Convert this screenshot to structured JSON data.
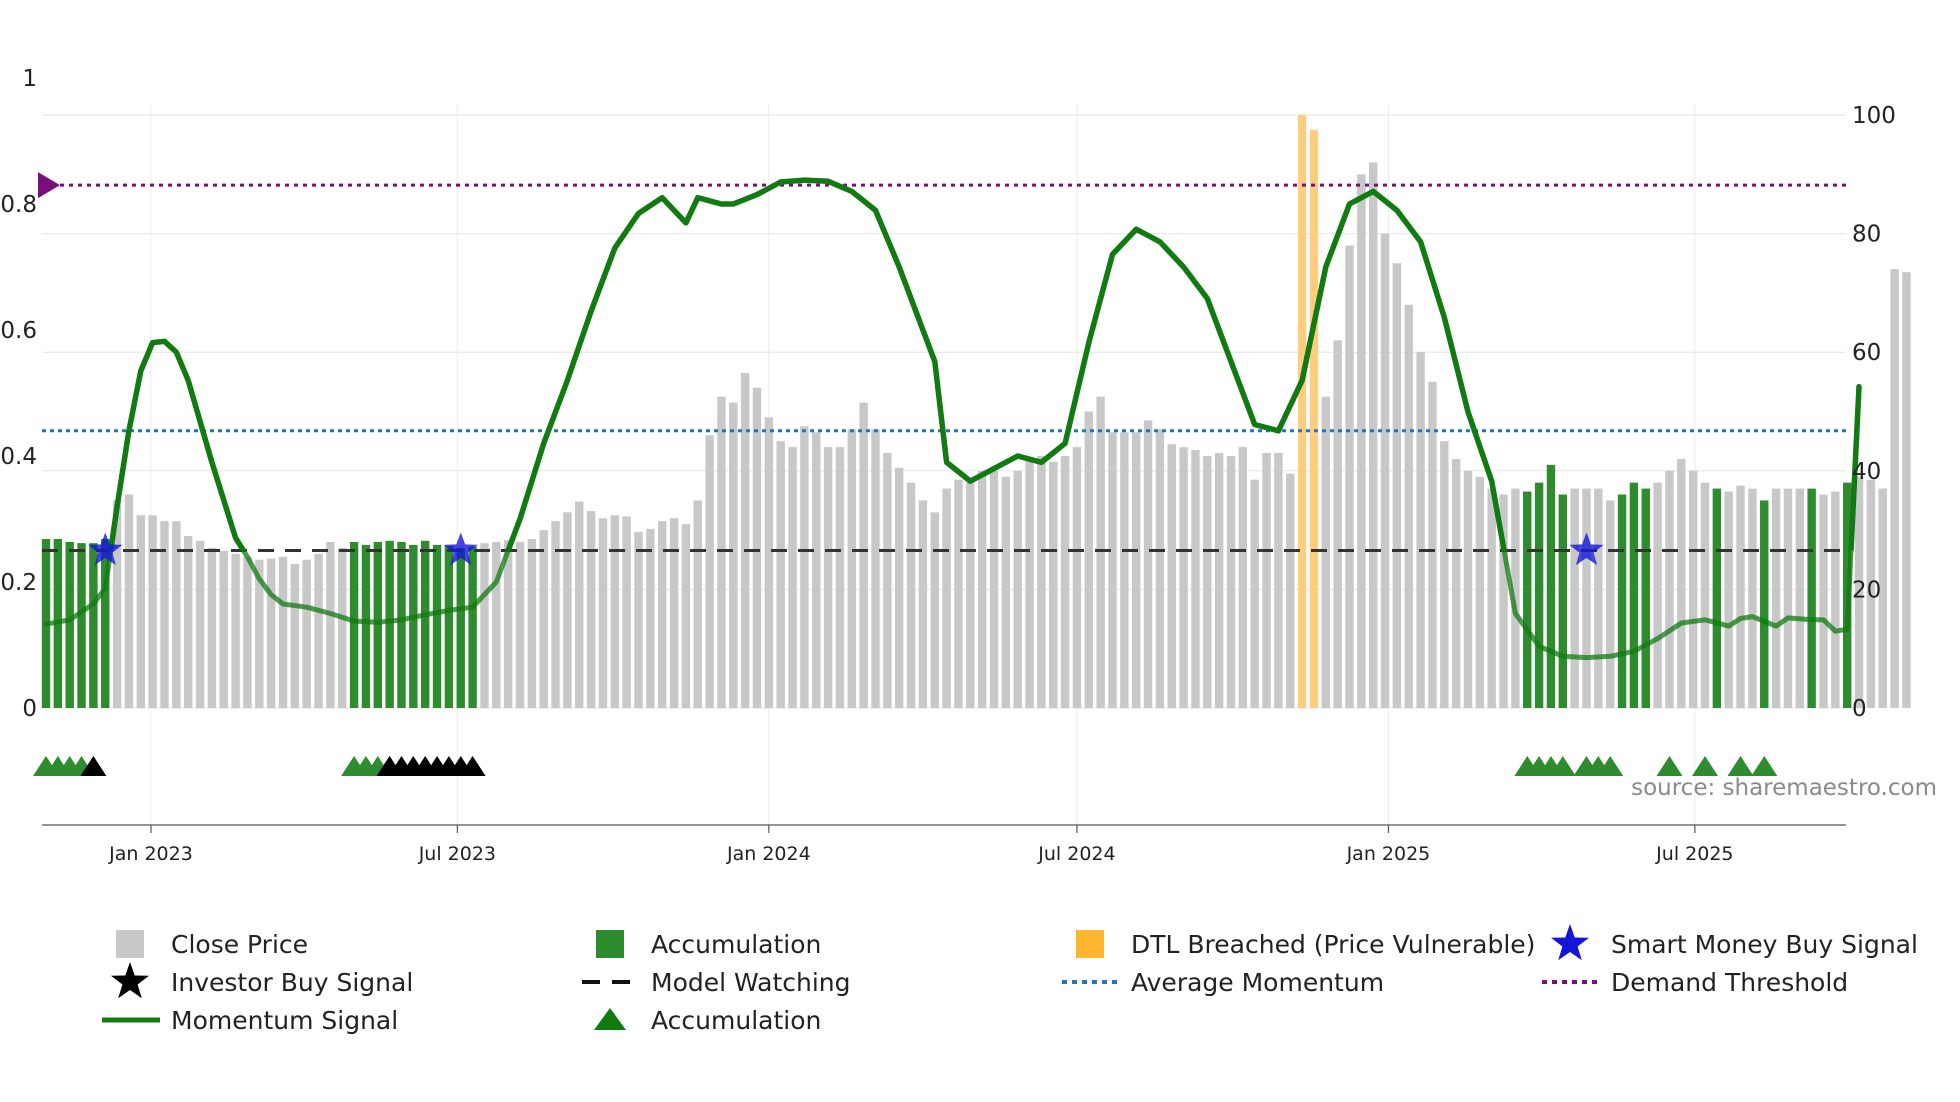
{
  "chart_data": {
    "type": "bar",
    "title": "",
    "xlabel": "",
    "ylabel_left": "",
    "ylabel_right": "",
    "left_axis": {
      "range": [
        0,
        1
      ],
      "ticks": [
        "0",
        "0.2",
        "0.4",
        "0.6",
        "0.8",
        "1"
      ]
    },
    "right_axis": {
      "range": [
        0,
        100
      ],
      "ticks": [
        "0",
        "20",
        "40",
        "60",
        "80",
        "100"
      ]
    },
    "x_ticks": [
      "Jan 2023",
      "Jul 2023",
      "Jan 2024",
      "Jul 2024",
      "Jan 2025",
      "Jul 2025"
    ],
    "date_range": [
      "2022-10-31",
      "2025-11-03"
    ],
    "bar_interval_days": 7,
    "close_price": [
      28.5,
      28.5,
      28,
      27.8,
      27.8,
      28.5,
      35,
      36,
      32.5,
      32.5,
      31.5,
      31.5,
      29,
      28.2,
      27,
      26.5,
      26,
      25.5,
      25,
      25.2,
      25.5,
      24.3,
      25,
      26,
      28,
      27,
      28,
      27.5,
      28,
      28.2,
      28,
      27.5,
      28.2,
      27.5,
      27.3,
      27,
      27.2,
      27.8,
      28,
      28.3,
      28,
      28.5,
      30,
      31.5,
      33,
      34.8,
      33.2,
      32,
      32.5,
      32.3,
      29.7,
      30.2,
      31.5,
      32,
      31,
      35,
      46,
      52.5,
      51.5,
      56.5,
      54,
      49,
      45,
      44,
      47.5,
      46.5,
      44,
      44,
      47,
      51.5,
      47,
      43,
      40.5,
      38,
      35,
      33,
      37,
      38.5,
      38,
      40,
      40,
      39,
      40,
      42,
      42.5,
      41.5,
      42.5,
      44,
      50,
      52.5,
      46.5,
      46.5,
      46.5,
      48.5,
      47,
      44.5,
      44,
      43.5,
      42.5,
      43,
      42.5,
      44,
      38.5,
      43,
      43,
      39.5,
      41,
      40.5,
      52.5,
      62,
      78,
      90,
      92,
      80,
      75,
      68,
      60,
      55,
      45,
      42,
      40,
      39,
      37,
      36,
      37,
      36.5,
      38,
      41,
      36,
      37,
      37,
      37,
      35,
      36,
      38,
      37,
      38,
      40,
      42,
      40,
      38,
      37,
      36.5,
      37.5,
      37,
      35,
      37,
      37,
      37,
      37,
      36,
      36.5,
      38,
      39,
      38.5,
      37,
      74,
      73.5
    ],
    "accumulation_indices": [
      0,
      1,
      2,
      3,
      4,
      5,
      26,
      27,
      28,
      29,
      30,
      31,
      32,
      33,
      34,
      35,
      36,
      125,
      126,
      127,
      128,
      133,
      134,
      135,
      141,
      145,
      149,
      152
    ],
    "dtl_breached_indices": [
      106,
      107
    ],
    "dtl_breached_values": [
      100,
      97.5
    ],
    "momentum_signal": [
      [
        0,
        0.133
      ],
      [
        2,
        0.14
      ],
      [
        4,
        0.165
      ],
      [
        5,
        0.19
      ],
      [
        6,
        0.32
      ],
      [
        7,
        0.44
      ],
      [
        8,
        0.535
      ],
      [
        9,
        0.58
      ],
      [
        10,
        0.582
      ],
      [
        11,
        0.565
      ],
      [
        12,
        0.52
      ],
      [
        14,
        0.39
      ],
      [
        16,
        0.27
      ],
      [
        17,
        0.24
      ],
      [
        18,
        0.205
      ],
      [
        19,
        0.18
      ],
      [
        20,
        0.165
      ],
      [
        22,
        0.16
      ],
      [
        24,
        0.15
      ],
      [
        26,
        0.138
      ],
      [
        28,
        0.136
      ],
      [
        30,
        0.14
      ],
      [
        32,
        0.148
      ],
      [
        34,
        0.155
      ],
      [
        36,
        0.16
      ],
      [
        38,
        0.2
      ],
      [
        40,
        0.3
      ],
      [
        42,
        0.42
      ],
      [
        44,
        0.52
      ],
      [
        46,
        0.63
      ],
      [
        48,
        0.73
      ],
      [
        50,
        0.785
      ],
      [
        52,
        0.81
      ],
      [
        54,
        0.77
      ],
      [
        55,
        0.81
      ],
      [
        57,
        0.8
      ],
      [
        58,
        0.8
      ],
      [
        60,
        0.815
      ],
      [
        62,
        0.835
      ],
      [
        64,
        0.838
      ],
      [
        66,
        0.836
      ],
      [
        68,
        0.82
      ],
      [
        70,
        0.79
      ],
      [
        72,
        0.7
      ],
      [
        74,
        0.6
      ],
      [
        75,
        0.55
      ],
      [
        76,
        0.39
      ],
      [
        78,
        0.36
      ],
      [
        80,
        0.38
      ],
      [
        82,
        0.4
      ],
      [
        84,
        0.39
      ],
      [
        86,
        0.42
      ],
      [
        88,
        0.58
      ],
      [
        90,
        0.72
      ],
      [
        92,
        0.76
      ],
      [
        94,
        0.74
      ],
      [
        96,
        0.7
      ],
      [
        98,
        0.65
      ],
      [
        100,
        0.55
      ],
      [
        102,
        0.45
      ],
      [
        104,
        0.44
      ],
      [
        106,
        0.52
      ],
      [
        108,
        0.7
      ],
      [
        110,
        0.8
      ],
      [
        112,
        0.82
      ],
      [
        114,
        0.79
      ],
      [
        116,
        0.74
      ],
      [
        118,
        0.62
      ],
      [
        120,
        0.47
      ],
      [
        122,
        0.36
      ],
      [
        124,
        0.15
      ],
      [
        126,
        0.098
      ],
      [
        128,
        0.082
      ],
      [
        130,
        0.08
      ],
      [
        132,
        0.082
      ],
      [
        134,
        0.09
      ],
      [
        136,
        0.11
      ],
      [
        138,
        0.135
      ],
      [
        140,
        0.14
      ],
      [
        142,
        0.13
      ],
      [
        143,
        0.142
      ],
      [
        144,
        0.145
      ],
      [
        146,
        0.13
      ],
      [
        147,
        0.143
      ],
      [
        149,
        0.14
      ],
      [
        150,
        0.14
      ],
      [
        151,
        0.122
      ],
      [
        152,
        0.125
      ],
      [
        153,
        0.51
      ]
    ],
    "model_watching_level": 0.25,
    "average_momentum": 0.44,
    "demand_threshold": 0.83,
    "smart_money_buy_signals": [
      5,
      35,
      130
    ],
    "accumulation_triangles": [
      0,
      1,
      2,
      3,
      26,
      27,
      28,
      29,
      125,
      126,
      127,
      128,
      130,
      131,
      132,
      137,
      140,
      143,
      145
    ],
    "investor_buy_triangles": [
      4,
      29,
      30,
      31,
      32,
      33,
      34,
      35,
      36
    ],
    "watermark": "source: sharemaestro.com",
    "legend": [
      "Close Price",
      "Accumulation",
      "DTL Breached (Price Vulnerable)",
      "Smart Money Buy Signal",
      "Investor Buy Signal",
      "Model Watching",
      "Average Momentum",
      "Demand Threshold",
      "Momentum Signal",
      "Accumulation"
    ],
    "colors": {
      "close_price": "#c8c8c8",
      "accumulation": "#2e8b2e",
      "dtl_breached": "#ffcc80",
      "smart_money": "#1515d8",
      "investor": "#000000",
      "momentum": "#117a11",
      "average_momentum": "#1f77b4",
      "demand_threshold": "#7a0f7a",
      "grid": "#e6e6e6"
    }
  }
}
